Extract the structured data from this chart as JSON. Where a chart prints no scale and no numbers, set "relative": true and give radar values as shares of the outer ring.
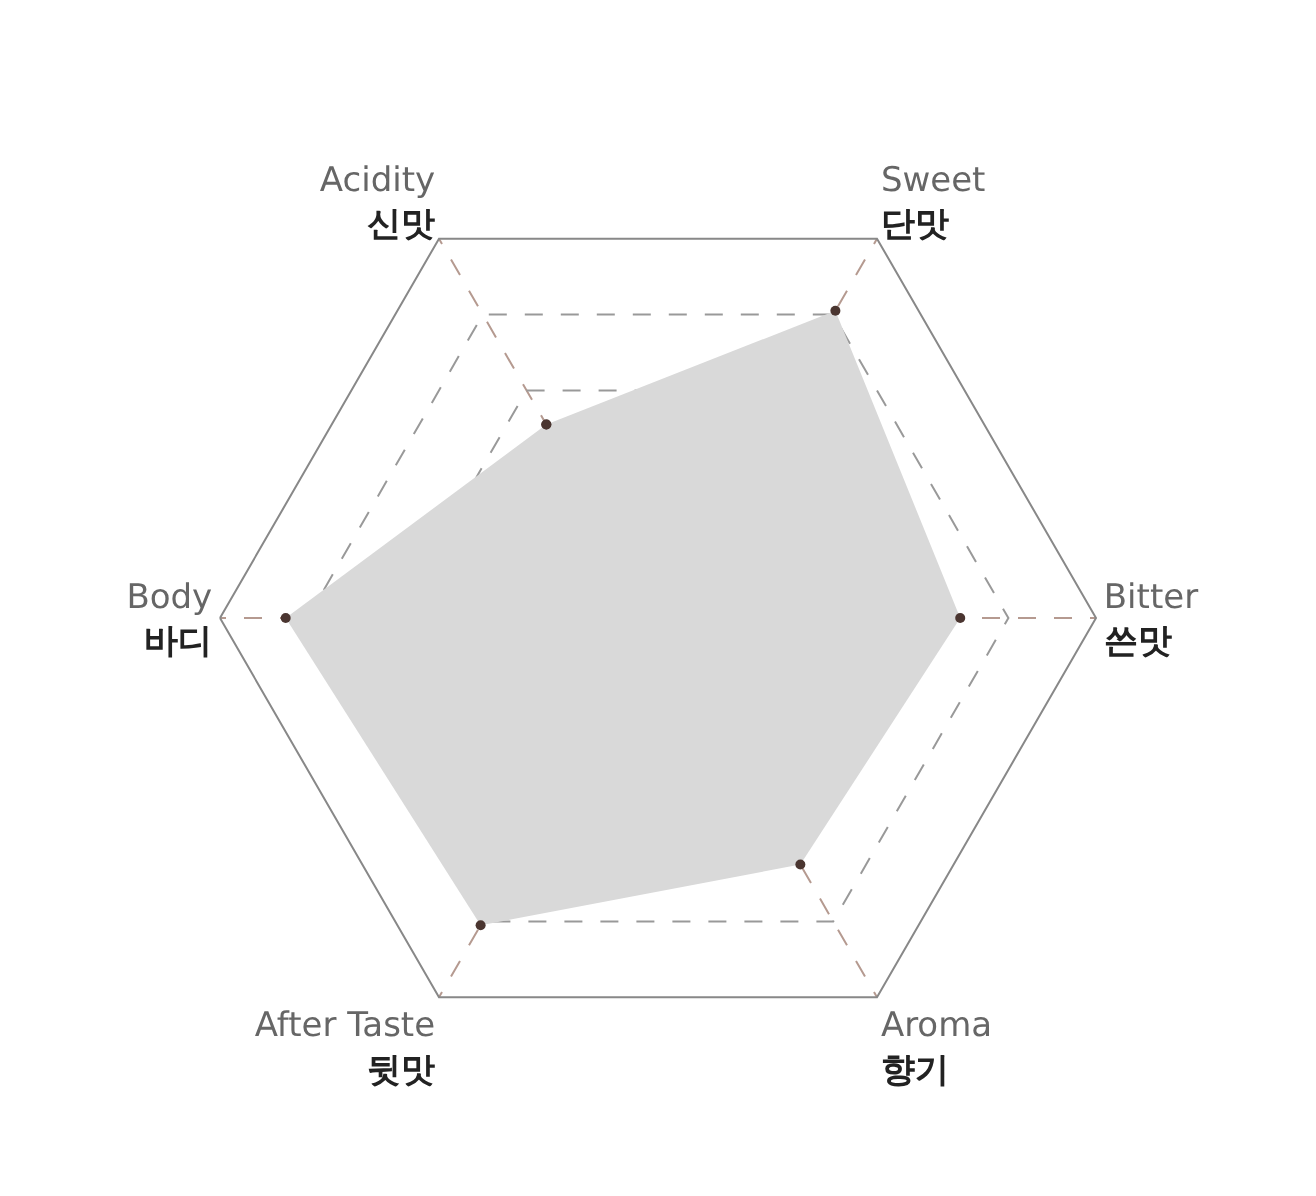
{
  "chart_data": {
    "type": "radar",
    "relative": true,
    "categories": [
      "Acidity\n신맛",
      "Sweet\n단맛",
      "Bitter\n쓴맛",
      "Aroma\n향기",
      "After Taste\n뒷맛",
      "Body\n바디"
    ],
    "series": [
      {
        "color": "#d9d9d9",
        "values": [
          0.51,
          0.81,
          0.69,
          0.65,
          0.81,
          0.85
        ]
      }
    ],
    "marker": "circle",
    "grid": true
  }
}
